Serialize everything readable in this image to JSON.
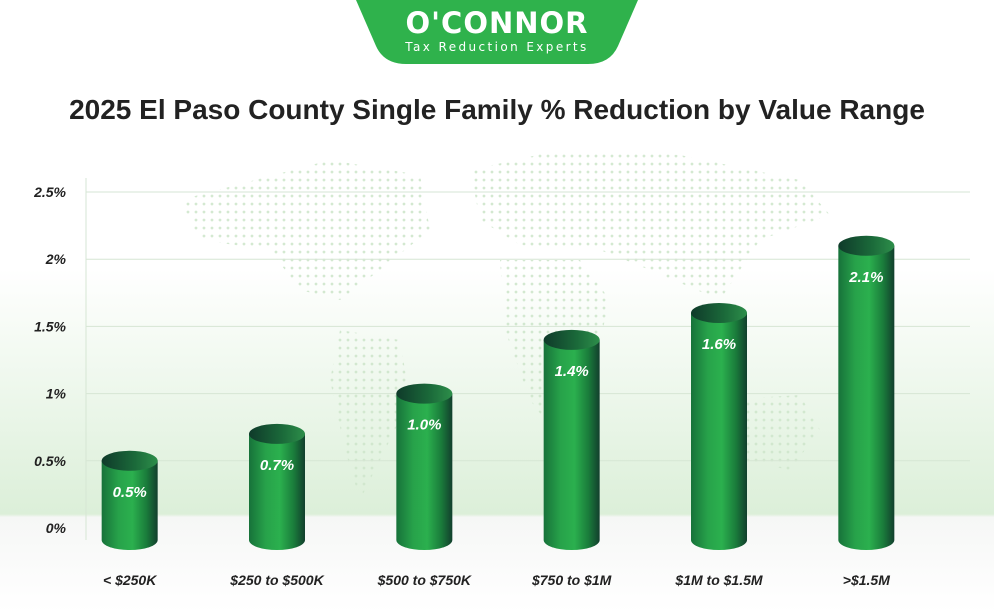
{
  "brand": {
    "name": "O'CONNOR",
    "tagline": "Tax Reduction Experts",
    "color": "#2fb24c"
  },
  "chart_data": {
    "type": "bar",
    "title": "2025 El Paso County Single Family % Reduction by Value Range",
    "categories": [
      "< $250K",
      "$250 to $500K",
      "$500 to $750K",
      "$750 to $1M",
      "$1M to $1.5M",
      ">$1.5M"
    ],
    "values": [
      0.5,
      0.7,
      1.0,
      1.4,
      1.6,
      2.1
    ],
    "value_labels": [
      "0.5%",
      "0.7%",
      "1.0%",
      "1.4%",
      "1.6%",
      "2.1%"
    ],
    "yticks": [
      0,
      0.5,
      1,
      1.5,
      2,
      2.5
    ],
    "ytick_labels": [
      "0%",
      "0.5%",
      "1%",
      "1.5%",
      "2%",
      "2.5%"
    ],
    "ylim": [
      0,
      2.5
    ],
    "xlabel": "",
    "ylabel": "",
    "grid": true,
    "bar_color": "#1f8f3c"
  }
}
